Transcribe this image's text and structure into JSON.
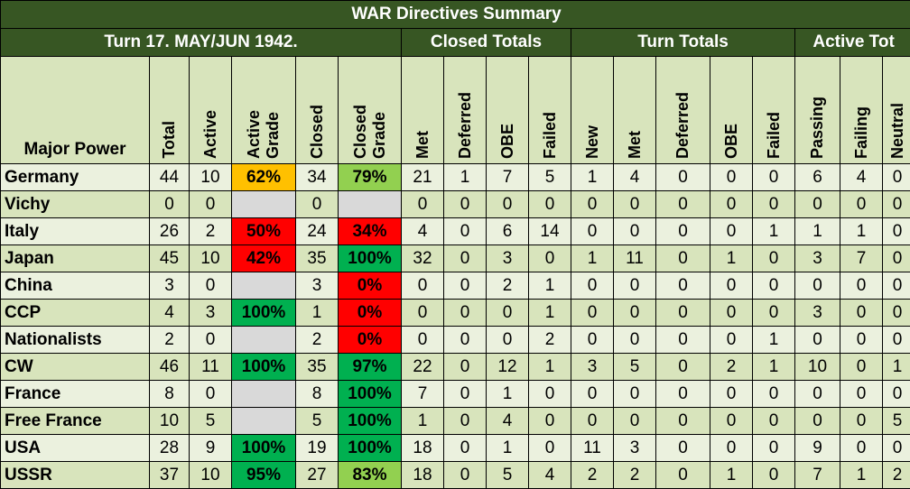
{
  "title": "WAR Directives Summary",
  "turn_label": "Turn 17.  MAY/JUN 1942.",
  "groups": {
    "closed": "Closed Totals",
    "turn": "Turn Totals",
    "active": "Active Tot"
  },
  "corner_label": "Major Power",
  "columns": [
    "Total",
    "Active",
    "Active\nGrade",
    "Closed",
    "Closed\nGrade",
    "Met",
    "Deferred",
    "OBE",
    "Failed",
    "New",
    "Met",
    "Deferred",
    "OBE",
    "Failed",
    "Passing",
    "Failing",
    "Neutral"
  ],
  "grade_colors": {
    "red": "#ff0000",
    "orange": "#ffc000",
    "green": "#00b050",
    "light_green": "#92d050",
    "empty": "#d9d9d9"
  },
  "rows": [
    {
      "name": "Germany",
      "cells": [
        "44",
        "10",
        "62%",
        "34",
        "79%",
        "21",
        "1",
        "7",
        "5",
        "1",
        "4",
        "0",
        "0",
        "0",
        "6",
        "4",
        "0"
      ],
      "active_grade_color": "orange",
      "closed_grade_color": "light_green"
    },
    {
      "name": "Vichy",
      "cells": [
        "0",
        "0",
        "",
        "0",
        "",
        "0",
        "0",
        "0",
        "0",
        "0",
        "0",
        "0",
        "0",
        "0",
        "0",
        "0",
        "0"
      ],
      "active_grade_color": "empty",
      "closed_grade_color": "empty"
    },
    {
      "name": "Italy",
      "cells": [
        "26",
        "2",
        "50%",
        "24",
        "34%",
        "4",
        "0",
        "6",
        "14",
        "0",
        "0",
        "0",
        "0",
        "1",
        "1",
        "1",
        "0"
      ],
      "active_grade_color": "red",
      "closed_grade_color": "red"
    },
    {
      "name": "Japan",
      "cells": [
        "45",
        "10",
        "42%",
        "35",
        "100%",
        "32",
        "0",
        "3",
        "0",
        "1",
        "11",
        "0",
        "1",
        "0",
        "3",
        "7",
        "0"
      ],
      "active_grade_color": "red",
      "closed_grade_color": "green"
    },
    {
      "name": "China",
      "cells": [
        "3",
        "0",
        "",
        "3",
        "0%",
        "0",
        "0",
        "2",
        "1",
        "0",
        "0",
        "0",
        "0",
        "0",
        "0",
        "0",
        "0"
      ],
      "active_grade_color": "empty",
      "closed_grade_color": "red"
    },
    {
      "name": "CCP",
      "cells": [
        "4",
        "3",
        "100%",
        "1",
        "0%",
        "0",
        "0",
        "0",
        "1",
        "0",
        "0",
        "0",
        "0",
        "0",
        "3",
        "0",
        "0"
      ],
      "active_grade_color": "green",
      "closed_grade_color": "red"
    },
    {
      "name": "Nationalists",
      "cells": [
        "2",
        "0",
        "",
        "2",
        "0%",
        "0",
        "0",
        "0",
        "2",
        "0",
        "0",
        "0",
        "0",
        "1",
        "0",
        "0",
        "0"
      ],
      "active_grade_color": "empty",
      "closed_grade_color": "red"
    },
    {
      "name": "CW",
      "cells": [
        "46",
        "11",
        "100%",
        "35",
        "97%",
        "22",
        "0",
        "12",
        "1",
        "3",
        "5",
        "0",
        "2",
        "1",
        "10",
        "0",
        "1"
      ],
      "active_grade_color": "green",
      "closed_grade_color": "green"
    },
    {
      "name": "France",
      "cells": [
        "8",
        "0",
        "",
        "8",
        "100%",
        "7",
        "0",
        "1",
        "0",
        "0",
        "0",
        "0",
        "0",
        "0",
        "0",
        "0",
        "0"
      ],
      "active_grade_color": "empty",
      "closed_grade_color": "green"
    },
    {
      "name": "Free France",
      "cells": [
        "10",
        "5",
        "",
        "5",
        "100%",
        "1",
        "0",
        "4",
        "0",
        "0",
        "0",
        "0",
        "0",
        "0",
        "0",
        "0",
        "5"
      ],
      "active_grade_color": "empty",
      "closed_grade_color": "green"
    },
    {
      "name": "USA",
      "cells": [
        "28",
        "9",
        "100%",
        "19",
        "100%",
        "18",
        "0",
        "1",
        "0",
        "11",
        "3",
        "0",
        "0",
        "0",
        "9",
        "0",
        "0"
      ],
      "active_grade_color": "green",
      "closed_grade_color": "green"
    },
    {
      "name": "USSR",
      "cells": [
        "37",
        "10",
        "95%",
        "27",
        "83%",
        "18",
        "0",
        "5",
        "4",
        "2",
        "2",
        "0",
        "1",
        "0",
        "7",
        "1",
        "2"
      ],
      "active_grade_color": "green",
      "closed_grade_color": "light_green"
    }
  ]
}
